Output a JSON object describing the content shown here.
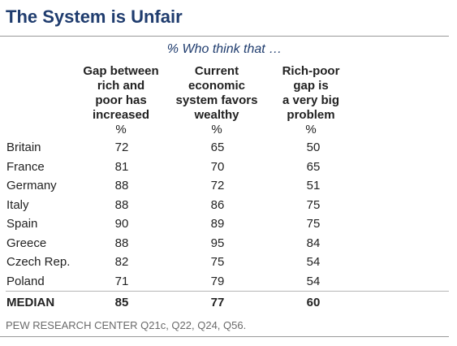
{
  "title": "The System is Unfair",
  "subtitle": "% Who think that …",
  "columns": [
    {
      "header_lines": [
        "Gap between",
        "rich and",
        "poor has",
        "increased"
      ],
      "unit": "%"
    },
    {
      "header_lines": [
        "Current",
        "economic",
        "system favors",
        "wealthy"
      ],
      "unit": "%"
    },
    {
      "header_lines": [
        "Rich-poor",
        "gap is",
        "a very big",
        "problem"
      ],
      "unit": "%"
    }
  ],
  "chart_data": {
    "type": "table",
    "title": "The System is Unfair",
    "subtitle": "% Who think that …",
    "columns": [
      "Gap between rich and poor has increased",
      "Current economic system favors wealthy",
      "Rich-poor gap is a very big problem"
    ],
    "unit": "%",
    "rows": [
      {
        "country": "Britain",
        "values": [
          "72",
          "65",
          "50"
        ]
      },
      {
        "country": "France",
        "values": [
          "81",
          "70",
          "65"
        ]
      },
      {
        "country": "Germany",
        "values": [
          "88",
          "72",
          "51"
        ]
      },
      {
        "country": "Italy",
        "values": [
          "88",
          "86",
          "75"
        ]
      },
      {
        "country": "Spain",
        "values": [
          "90",
          "89",
          "75"
        ]
      },
      {
        "country": "Greece",
        "values": [
          "88",
          "95",
          "84"
        ]
      },
      {
        "country": "Czech Rep.",
        "values": [
          "82",
          "75",
          "54"
        ]
      },
      {
        "country": "Poland",
        "values": [
          "71",
          "79",
          "54"
        ]
      }
    ],
    "summary": {
      "label": "MEDIAN",
      "values": [
        "85",
        "77",
        "60"
      ]
    }
  },
  "source": "PEW RESEARCH CENTER Q21c, Q22, Q24, Q56.",
  "colors": {
    "title": "#1f3c6e",
    "rules": "#9a9a9a",
    "source": "#6a6a6a"
  }
}
